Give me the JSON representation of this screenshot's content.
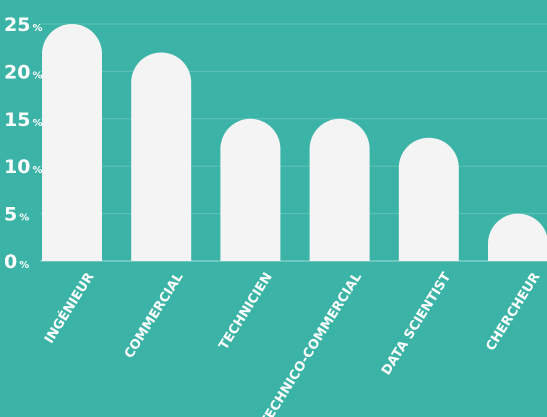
{
  "chart_data": {
    "type": "bar",
    "title": "",
    "xlabel": "",
    "ylabel": "",
    "categories": [
      "INGÉNIEUR",
      "COMMERCIAL",
      "TECHNICIEN",
      "TECHNICO-COMMERCIAL",
      "DATA SCIENTIST",
      "CHERCHEUR"
    ],
    "values": [
      25,
      22,
      15,
      15,
      13,
      5
    ],
    "ylim": [
      0,
      25
    ],
    "yticks": [
      0,
      5,
      10,
      15,
      20,
      25
    ],
    "y_unit": "%",
    "grid": true
  },
  "colors": {
    "background": "#3bb3a6",
    "bar": "#f4f4f4",
    "grid": "#5fc3b8",
    "text": "#ffffff"
  }
}
